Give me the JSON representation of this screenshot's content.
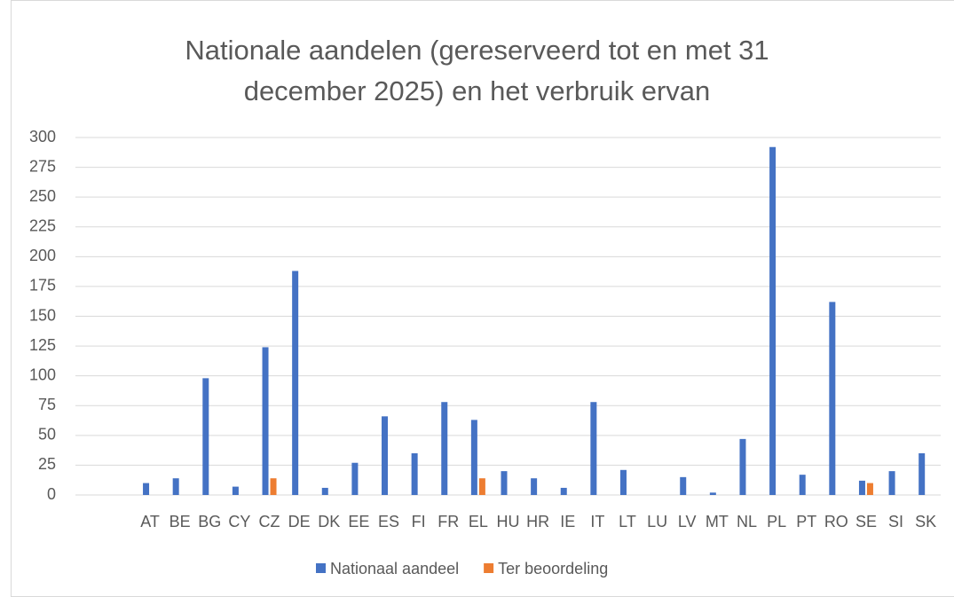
{
  "chart_data": {
    "type": "bar",
    "title": "Nationale aandelen (gereserveerd tot en met 31 december 2025) en het verbruik ervan",
    "categories": [
      null,
      null,
      "AT",
      "BE",
      "BG",
      "CY",
      "CZ",
      "DE",
      "DK",
      "EE",
      "ES",
      "FI",
      "FR",
      "EL",
      "HU",
      "HR",
      "IE",
      "IT",
      "LT",
      "LU",
      "LV",
      "MT",
      "NL",
      "PL",
      "PT",
      "RO",
      "SE",
      "SI",
      "SK"
    ],
    "series": [
      {
        "name": "Nationaal aandeel",
        "color": "#4472c4",
        "values": [
          null,
          null,
          10,
          14,
          98,
          7,
          124,
          188,
          6,
          27,
          66,
          35,
          78,
          63,
          20,
          14,
          6,
          78,
          21,
          0,
          15,
          2,
          47,
          292,
          17,
          162,
          12,
          20,
          35
        ]
      },
      {
        "name": "Ter beoordeling",
        "color": "#ed7d31",
        "values": [
          null,
          null,
          null,
          null,
          null,
          null,
          14,
          null,
          null,
          null,
          null,
          null,
          null,
          14,
          null,
          null,
          null,
          null,
          null,
          null,
          null,
          null,
          null,
          null,
          null,
          null,
          10,
          null,
          null
        ]
      }
    ],
    "ylim": [
      0,
      300
    ],
    "yticks": [
      0,
      25,
      50,
      75,
      100,
      125,
      150,
      175,
      200,
      225,
      250,
      275,
      300
    ],
    "grid": true,
    "legend": "bottom"
  }
}
